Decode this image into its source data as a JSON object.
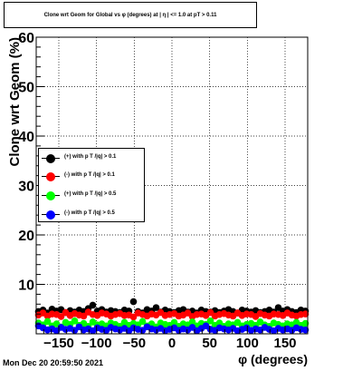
{
  "chart_data": {
    "type": "scatter",
    "title": "Clone wrt Geom for Global vs φ (degrees) at | η | <= 1.0 at pT > 0.11",
    "xlabel": "φ (degrees)",
    "ylabel": "Clone wrt Geom (%)",
    "xlim": [
      -180,
      180
    ],
    "ylim": [
      0,
      60
    ],
    "x_ticks": [
      -150,
      -100,
      -50,
      0,
      50,
      100,
      150
    ],
    "y_ticks": [
      10,
      20,
      30,
      40,
      50,
      60
    ],
    "x_tick_labels": [
      "−150",
      "−100",
      "−50",
      "0",
      "50",
      "100",
      "150"
    ],
    "y_tick_labels": [
      "10",
      "20",
      "30",
      "40",
      "50",
      "60"
    ],
    "grid": true,
    "legend_position": "middle-left",
    "series": [
      {
        "name": "(+) with p T /|q| > 0.1",
        "color": "#000000",
        "x": [
          -177,
          -171,
          -165,
          -159,
          -153,
          -147,
          -141,
          -135,
          -129,
          -123,
          -117,
          -111,
          -105,
          -99,
          -93,
          -87,
          -81,
          -75,
          -69,
          -63,
          -57,
          -51,
          -45,
          -39,
          -33,
          -27,
          -21,
          -15,
          -9,
          -3,
          3,
          9,
          15,
          21,
          27,
          33,
          39,
          45,
          51,
          57,
          63,
          69,
          75,
          81,
          87,
          93,
          99,
          105,
          111,
          117,
          123,
          129,
          135,
          141,
          147,
          153,
          159,
          165,
          171,
          177
        ],
        "values": [
          4.5,
          4.8,
          4.2,
          5.0,
          4.6,
          4.9,
          4.3,
          4.7,
          4.4,
          4.8,
          4.5,
          5.1,
          5.8,
          4.6,
          4.9,
          4.4,
          4.7,
          4.5,
          4.3,
          4.8,
          4.6,
          6.5,
          4.5,
          4.2,
          4.9,
          4.6,
          5.3,
          4.4,
          4.8,
          4.5,
          4.3,
          4.7,
          4.9,
          4.4,
          4.6,
          4.2,
          4.8,
          4.5,
          4.4,
          4.7,
          4.3,
          4.6,
          4.9,
          4.5,
          4.2,
          4.8,
          4.6,
          4.4,
          4.7,
          4.3,
          4.5,
          4.8,
          4.4,
          5.3,
          4.6,
          4.9,
          4.5,
          4.3,
          4.8,
          4.6
        ]
      },
      {
        "name": "(-) with p T /|q| > 0.1",
        "color": "#ff0000",
        "x": [
          -177,
          -171,
          -165,
          -159,
          -153,
          -147,
          -141,
          -135,
          -129,
          -123,
          -117,
          -111,
          -105,
          -99,
          -93,
          -87,
          -81,
          -75,
          -69,
          -63,
          -57,
          -51,
          -45,
          -39,
          -33,
          -27,
          -21,
          -15,
          -9,
          -3,
          3,
          9,
          15,
          21,
          27,
          33,
          39,
          45,
          51,
          57,
          63,
          69,
          75,
          81,
          87,
          93,
          99,
          105,
          111,
          117,
          123,
          129,
          135,
          141,
          147,
          153,
          159,
          165,
          171,
          177
        ],
        "values": [
          3.8,
          4.2,
          3.6,
          4.0,
          3.9,
          3.5,
          4.3,
          3.7,
          4.1,
          3.8,
          3.6,
          4.4,
          3.9,
          3.7,
          4.2,
          4.0,
          3.6,
          3.9,
          4.1,
          3.7,
          3.8,
          3.4,
          4.2,
          3.9,
          3.6,
          4.0,
          3.8,
          4.3,
          3.7,
          3.9,
          4.1,
          3.6,
          3.8,
          4.2,
          3.5,
          3.9,
          4.0,
          3.7,
          4.3,
          3.6,
          3.9,
          4.1,
          3.8,
          3.6,
          4.2,
          3.7,
          4.0,
          3.9,
          3.5,
          4.1,
          3.8,
          3.6,
          4.0,
          3.9,
          3.7,
          4.2,
          3.8,
          3.6,
          3.9,
          4.0
        ]
      },
      {
        "name": "(+) with p T /|q| > 0.5",
        "color": "#00ff00",
        "x": [
          -177,
          -171,
          -165,
          -159,
          -153,
          -147,
          -141,
          -135,
          -129,
          -123,
          -117,
          -111,
          -105,
          -99,
          -93,
          -87,
          -81,
          -75,
          -69,
          -63,
          -57,
          -51,
          -45,
          -39,
          -33,
          -27,
          -21,
          -15,
          -9,
          -3,
          3,
          9,
          15,
          21,
          27,
          33,
          39,
          45,
          51,
          57,
          63,
          69,
          75,
          81,
          87,
          93,
          99,
          105,
          111,
          117,
          123,
          129,
          135,
          141,
          147,
          153,
          159,
          165,
          171,
          177
        ],
        "values": [
          2.2,
          1.8,
          2.5,
          1.6,
          2.0,
          1.4,
          2.3,
          1.9,
          2.6,
          1.7,
          2.1,
          1.5,
          2.4,
          1.8,
          2.0,
          1.6,
          2.2,
          1.9,
          1.5,
          2.3,
          1.7,
          2.1,
          1.8,
          2.5,
          1.6,
          2.0,
          1.4,
          2.2,
          1.9,
          1.7,
          2.3,
          1.5,
          2.0,
          1.8,
          2.4,
          1.6,
          2.1,
          1.9,
          2.6,
          1.7,
          2.2,
          1.5,
          2.0,
          1.8,
          2.3,
          1.6,
          1.9,
          2.1,
          1.7,
          2.4,
          1.8,
          1.5,
          2.2,
          1.9,
          1.6,
          2.0,
          1.8,
          2.3,
          1.7,
          2.1
        ]
      },
      {
        "name": "(-) with p T /|q| > 0.5",
        "color": "#0000ff",
        "x": [
          -177,
          -171,
          -165,
          -159,
          -153,
          -147,
          -141,
          -135,
          -129,
          -123,
          -117,
          -111,
          -105,
          -99,
          -93,
          -87,
          -81,
          -75,
          -69,
          -63,
          -57,
          -51,
          -45,
          -39,
          -33,
          -27,
          -21,
          -15,
          -9,
          -3,
          3,
          9,
          15,
          21,
          27,
          33,
          39,
          45,
          51,
          57,
          63,
          69,
          75,
          81,
          87,
          93,
          99,
          105,
          111,
          117,
          123,
          129,
          135,
          141,
          147,
          153,
          159,
          165,
          171,
          177
        ],
        "values": [
          1.6,
          1.2,
          0.8,
          1.0,
          0.6,
          1.3,
          0.9,
          1.1,
          0.7,
          1.4,
          0.8,
          1.0,
          0.6,
          1.2,
          0.9,
          0.7,
          1.3,
          1.0,
          0.8,
          1.1,
          0.6,
          1.2,
          0.9,
          0.7,
          1.4,
          1.0,
          0.8,
          1.1,
          0.6,
          0.9,
          1.2,
          0.7,
          1.0,
          0.8,
          1.3,
          0.6,
          1.1,
          1.6,
          0.9,
          0.7,
          1.2,
          1.0,
          0.8,
          1.1,
          0.6,
          0.9,
          1.2,
          0.7,
          1.0,
          0.8,
          1.3,
          0.9,
          0.6,
          1.1,
          0.8,
          1.0,
          0.7,
          1.2,
          0.9,
          0.8
        ]
      }
    ]
  },
  "timestamp": "Mon Dec 20 20:59:50 2021"
}
